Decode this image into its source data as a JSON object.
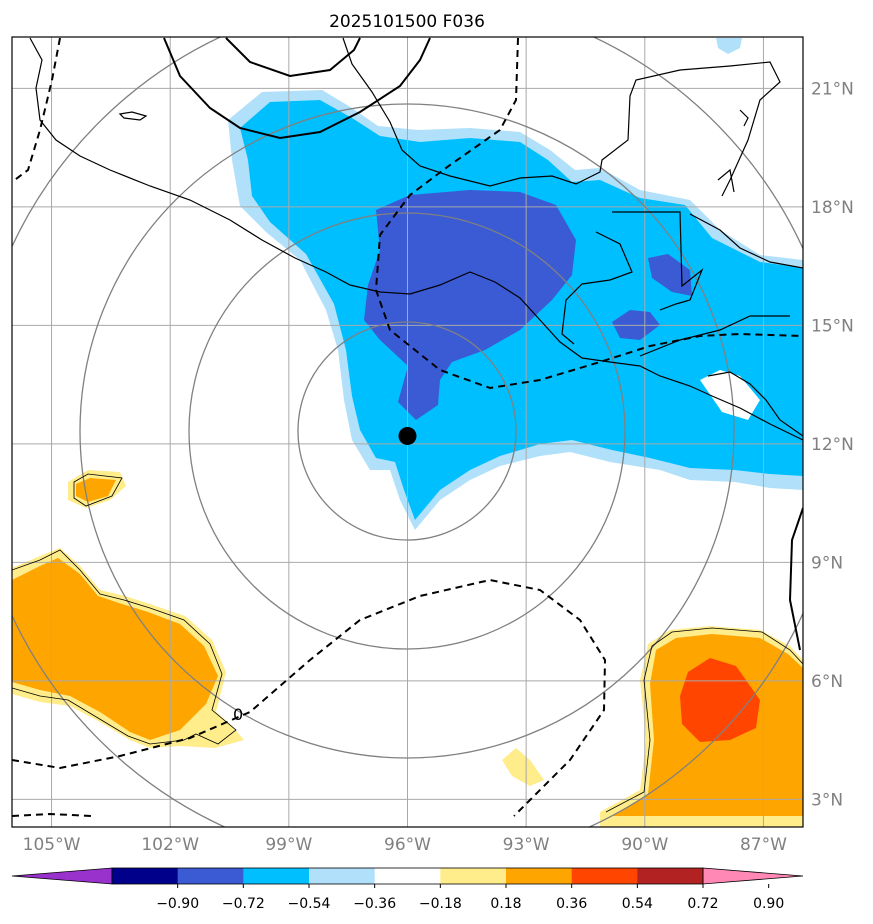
{
  "title": "2025101500 F036",
  "map": {
    "lon_range": [
      -106.0,
      -86.0
    ],
    "lat_range": [
      2.3,
      22.3
    ],
    "lat_ticks": [
      {
        "value": 21,
        "label": "21°N"
      },
      {
        "value": 18,
        "label": "18°N"
      },
      {
        "value": 15,
        "label": "15°N"
      },
      {
        "value": 12,
        "label": "12°N"
      },
      {
        "value": 9,
        "label": "9°N"
      },
      {
        "value": 6,
        "label": "6°N"
      },
      {
        "value": 3,
        "label": "3°N"
      }
    ],
    "lon_ticks": [
      {
        "value": -105,
        "label": "105°W"
      },
      {
        "value": -102,
        "label": "102°W"
      },
      {
        "value": -99,
        "label": "99°W"
      },
      {
        "value": -96,
        "label": "96°W"
      },
      {
        "value": -93,
        "label": "93°W"
      },
      {
        "value": -90,
        "label": "90°W"
      },
      {
        "value": -87,
        "label": "87°W"
      }
    ],
    "gridlines": true,
    "storm_center": {
      "lon": -96.0,
      "lat": 12.2
    },
    "range_rings_deg": [
      2.75,
      5.5,
      8.25
    ],
    "contour_label": "0"
  },
  "colorbar": {
    "levels": [
      -0.9,
      -0.72,
      -0.54,
      -0.36,
      -0.18,
      0.18,
      0.36,
      0.54,
      0.72,
      0.9
    ],
    "tick_labels": [
      "−0.90",
      "−0.72",
      "−0.54",
      "−0.36",
      "−0.18",
      "0.18",
      "0.36",
      "0.54",
      "0.72",
      "0.90"
    ],
    "colors": [
      "#9932cc",
      "#00008b",
      "#3a5bd4",
      "#00bfff",
      "#b0e0fa",
      "#ffffff",
      "#ffec8b",
      "#ffa500",
      "#ff4500",
      "#b22222",
      "#ff88b4"
    ],
    "extend": "both"
  },
  "colors": {
    "coast": "#000000",
    "grid": "#a9a9a9",
    "ring": "#808080",
    "tick_label": "#808080"
  }
}
